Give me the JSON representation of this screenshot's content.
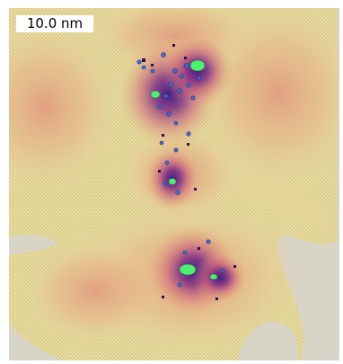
{
  "image": {
    "kind": "simulation-render",
    "colors": {
      "background": "#d9d4c8",
      "sheet": "#ece0a3",
      "stress_warm": "#e39a76",
      "stress_hot": "#b8507d",
      "stress_core": "#4d1e86",
      "defect_blue": "#3f6fd3",
      "cluster_green": "#4df071"
    }
  },
  "scale_bar": {
    "label": "10.0 nm"
  }
}
